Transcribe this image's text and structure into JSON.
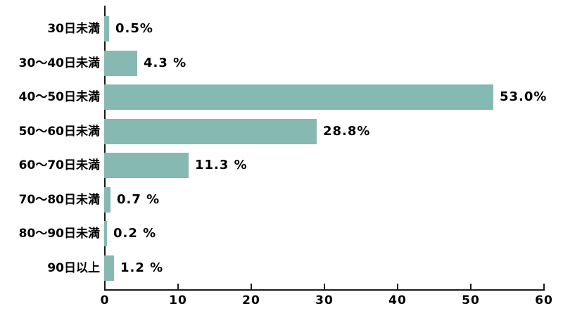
{
  "chart_data": {
    "type": "bar",
    "orientation": "horizontal",
    "title": "",
    "categories": [
      "30日未満",
      "30～40日未満",
      "40～50日未満",
      "50～60日未満",
      "60～70日未満",
      "70～80日未満",
      "80～90日未満",
      "90日以上"
    ],
    "values": [
      0.5,
      4.3,
      53.0,
      28.8,
      11.3,
      0.7,
      0.2,
      1.2
    ],
    "value_labels": [
      "0.5%",
      "4.3 %",
      "53.0%",
      "28.8%",
      "11.3 %",
      "0.7 %",
      "0.2 %",
      "1.2 %"
    ],
    "xlim": [
      0,
      60
    ],
    "x_ticks": [
      0,
      10,
      20,
      30,
      40,
      50,
      60
    ],
    "bar_color": "#85b9b1",
    "axis_color": "#1a1a1a",
    "background_color": "#ffffff",
    "grid": false,
    "legend": "none"
  }
}
